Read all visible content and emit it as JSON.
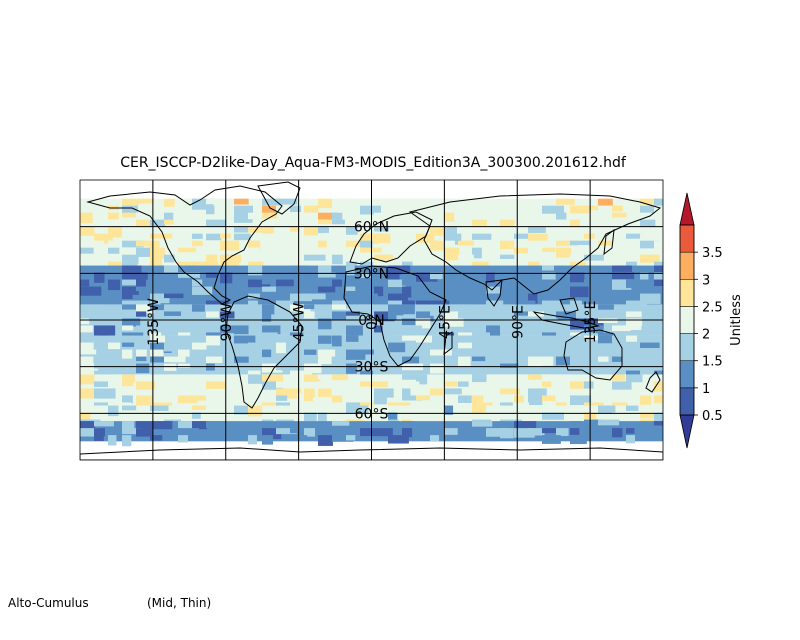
{
  "title": "CER_ISCCP-D2like-Day_Aqua-FM3-MODIS_Edition3A_300300.201612.hdf",
  "caption": {
    "left": "Alto-Cumulus",
    "right": "(Mid, Thin)"
  },
  "map": {
    "projection": "equirectangular",
    "lon_range": [
      -180,
      180
    ],
    "lat_range": [
      -90,
      90
    ],
    "meridian_labels": [
      "135°W",
      "90°W",
      "45°W",
      "0°",
      "45°E",
      "90°E",
      "135°E"
    ],
    "meridians": [
      -135,
      -90,
      -45,
      0,
      45,
      90,
      135
    ],
    "parallel_labels": [
      "60°N",
      "30°N",
      "0°N",
      "30°S",
      "60°S"
    ],
    "parallels": [
      60,
      30,
      0,
      -30,
      -60
    ]
  },
  "colorbar": {
    "label": "Unitless",
    "ticks": [
      "0.5",
      "1",
      "1.5",
      "2",
      "2.5",
      "3",
      "3.5"
    ],
    "tick_values": [
      0.5,
      1,
      1.5,
      2,
      2.5,
      3,
      3.5
    ],
    "colors": [
      "#4060ab",
      "#5a8fc4",
      "#a6d1e4",
      "#e9f6ea",
      "#fde69a",
      "#fcae61",
      "#ea5a3b"
    ],
    "under_color": "#323c96",
    "over_color": "#b3182b",
    "extend": "both"
  },
  "chart_data": {
    "type": "heatmap",
    "title": "CER_ISCCP-D2like-Day_Aqua-FM3-MODIS_Edition3A_300300.201612.hdf",
    "colorbar_label": "Unitless",
    "value_range": [
      0.5,
      3.5
    ],
    "zonal_bands": [
      {
        "lat": [
          60,
          78
        ],
        "value": 2.4
      },
      {
        "lat": [
          35,
          60
        ],
        "value": 2.3
      },
      {
        "lat": [
          10,
          35
        ],
        "value": 1.3
      },
      {
        "lat": [
          -10,
          10
        ],
        "value": 1.6
      },
      {
        "lat": [
          -35,
          -10
        ],
        "value": 1.8
      },
      {
        "lat": [
          -55,
          -35
        ],
        "value": 2.3
      },
      {
        "lat": [
          -65,
          -55
        ],
        "value": 2.1
      },
      {
        "lat": [
          -78,
          -65
        ],
        "value": 1.3
      }
    ]
  }
}
